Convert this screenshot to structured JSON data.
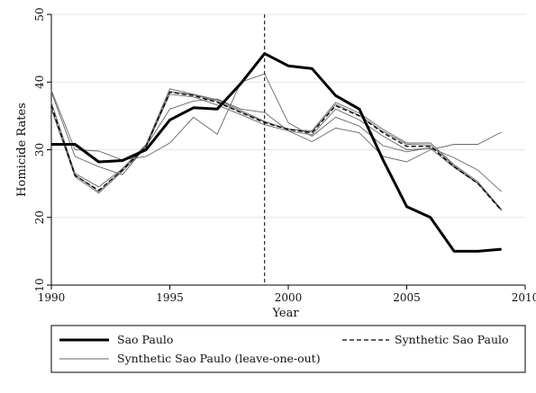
{
  "chart_data": {
    "type": "line",
    "title": "",
    "xlabel": "Year",
    "ylabel": "Homicide Rates",
    "xlim": [
      1990,
      2010
    ],
    "ylim": [
      10,
      50
    ],
    "x_ticks": [
      1990,
      1995,
      2000,
      2005,
      2010
    ],
    "y_ticks": [
      10,
      20,
      30,
      40,
      50
    ],
    "grid": "horizontal",
    "treatment_year": 1999,
    "x": [
      1990,
      1991,
      1992,
      1993,
      1994,
      1995,
      1996,
      1997,
      1998,
      1999,
      2000,
      2001,
      2002,
      2003,
      2004,
      2005,
      2006,
      2007,
      2008,
      2009
    ],
    "series": [
      {
        "name": "Sao Paulo",
        "style": "thick",
        "color": "#000000",
        "values": [
          30.8,
          30.8,
          28.2,
          28.4,
          30.0,
          34.4,
          36.2,
          36.0,
          39.8,
          44.2,
          42.4,
          42.0,
          38.0,
          36.0,
          28.5,
          21.6,
          20.0,
          15.0,
          15.0,
          15.3
        ]
      },
      {
        "name": "Synthetic Sao Paulo",
        "style": "dashed",
        "color": "#000000",
        "values": [
          36.5,
          26.2,
          24.0,
          27.0,
          30.5,
          38.5,
          38.0,
          37.0,
          35.5,
          34.0,
          33.0,
          32.5,
          36.5,
          35.0,
          32.5,
          30.5,
          30.5,
          27.5,
          25.0,
          21.0
        ]
      },
      {
        "name": "Synthetic Sao Paulo (leave-one-out)",
        "style": "thin",
        "color": "#666666",
        "values": [
          36.0,
          26.0,
          23.6,
          26.8,
          30.4,
          38.2,
          37.8,
          36.6,
          35.2,
          33.7,
          32.8,
          32.2,
          36.0,
          34.4,
          32.0,
          30.0,
          30.2,
          27.4,
          25.0,
          21.0
        ]
      },
      {
        "name": "",
        "style": "thin",
        "color": "#666666",
        "values": [
          37.0,
          26.5,
          24.5,
          27.2,
          30.8,
          39.0,
          38.2,
          37.4,
          35.8,
          34.2,
          33.0,
          32.8,
          37.0,
          35.4,
          33.0,
          31.0,
          31.0,
          27.8,
          25.3,
          21.2
        ]
      },
      {
        "name": "",
        "style": "thin",
        "color": "#666666",
        "values": [
          36.2,
          26.3,
          23.8,
          27.1,
          30.6,
          38.6,
          38.1,
          37.2,
          35.6,
          34.1,
          33.1,
          32.6,
          36.7,
          35.1,
          32.7,
          30.8,
          30.7,
          27.6,
          25.1,
          21.1
        ]
      },
      {
        "name": "",
        "style": "thin",
        "color": "#666666",
        "values": [
          38.5,
          29.0,
          27.5,
          26.3,
          30.5,
          36.0,
          37.2,
          37.5,
          36.0,
          35.5,
          32.8,
          31.2,
          33.2,
          32.5,
          29.0,
          28.2,
          30.0,
          30.8,
          30.8,
          32.6
        ]
      },
      {
        "name": "",
        "style": "thin",
        "color": "#666666",
        "values": [
          38.8,
          30.0,
          29.8,
          28.5,
          29.0,
          31.0,
          34.8,
          32.3,
          40.0,
          41.2,
          34.0,
          32.0,
          34.8,
          33.5,
          30.6,
          29.7,
          30.3,
          28.8,
          27.0,
          23.8
        ]
      }
    ],
    "legend": {
      "position": "bottom",
      "entries": [
        {
          "label": "Sao Paulo",
          "style": "thick"
        },
        {
          "label": "Synthetic Sao Paulo",
          "style": "dashed"
        },
        {
          "label": "Synthetic Sao Paulo (leave-one-out)",
          "style": "thin"
        }
      ]
    }
  }
}
